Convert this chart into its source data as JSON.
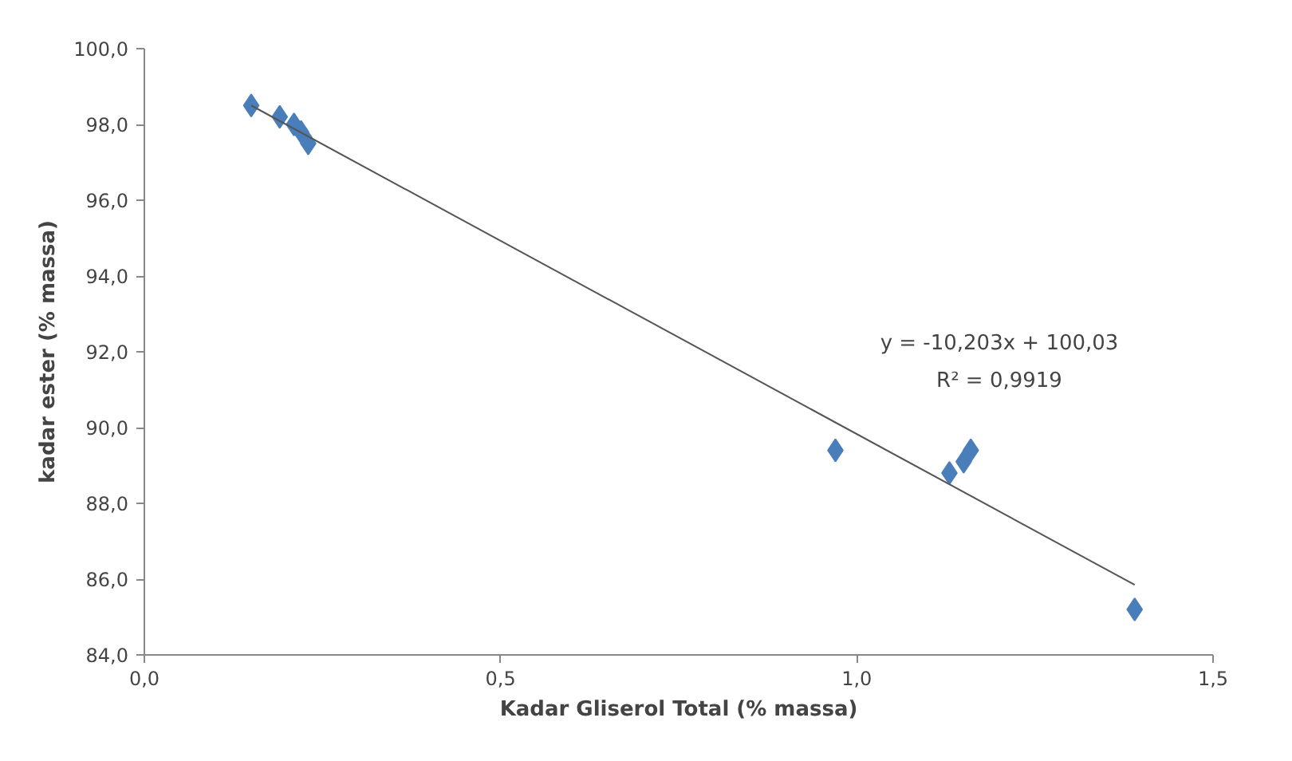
{
  "chart_data": {
    "type": "scatter",
    "xlabel": "Kadar Gliserol Total (% massa)",
    "ylabel": "kadar ester (% massa)",
    "xlim": [
      0,
      1.5
    ],
    "ylim": [
      84,
      100
    ],
    "xticks": [
      {
        "value": 0,
        "label": "0,0"
      },
      {
        "value": 0.5,
        "label": "0,5"
      },
      {
        "value": 1,
        "label": "1,0"
      },
      {
        "value": 1.5,
        "label": "1,5"
      }
    ],
    "yticks": [
      {
        "value": 84,
        "label": "84,0"
      },
      {
        "value": 86,
        "label": "86,0"
      },
      {
        "value": 88,
        "label": "88,0"
      },
      {
        "value": 90,
        "label": "90,0"
      },
      {
        "value": 92,
        "label": "92,0"
      },
      {
        "value": 94,
        "label": "94,0"
      },
      {
        "value": 96,
        "label": "96,0"
      },
      {
        "value": 98,
        "label": "98,0"
      },
      {
        "value": 100,
        "label": "100,0"
      }
    ],
    "grid": false,
    "series": [
      {
        "marker": "diamond",
        "color": "#4a7ebb",
        "x": [
          0.15,
          0.19,
          0.21,
          0.22,
          0.23,
          0.97,
          1.13,
          1.15,
          1.16,
          1.39
        ],
        "values": [
          98.5,
          98.2,
          98.0,
          97.8,
          97.5,
          89.4,
          88.8,
          89.1,
          89.4,
          85.2
        ]
      },
      {
        "type": "line",
        "color": "#555555",
        "x": [
          0.15,
          1.39
        ],
        "values": [
          98.5,
          85.85
        ]
      }
    ],
    "annotations": [
      "y = -10,203x + 100,03",
      "R² = 0,9919"
    ]
  }
}
